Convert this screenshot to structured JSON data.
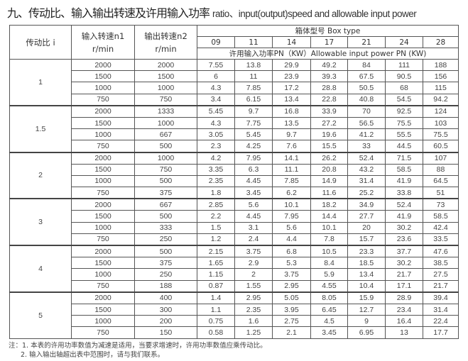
{
  "title": {
    "cn": "九、传动比、输入输出转速及许用输入功率",
    "en": "ratio、input(output)speed and allowable input power"
  },
  "header": {
    "ratio": "传动比 i",
    "input_speed": "输入转速n1",
    "output_speed": "输出转速n2",
    "unit": "r/min",
    "box_type": "箱体型号 Box type",
    "box_sizes": [
      "09",
      "11",
      "14",
      "17",
      "21",
      "24",
      "28"
    ],
    "power_label": "许用输入功率PN（KW）Allowable input power PN (KW)"
  },
  "groups": [
    {
      "ratio": "1",
      "rows": [
        {
          "n1": "2000",
          "n2": "2000",
          "p": [
            "7.55",
            "13.8",
            "29.9",
            "49.2",
            "84",
            "111",
            "188"
          ]
        },
        {
          "n1": "1500",
          "n2": "1500",
          "p": [
            "6",
            "11",
            "23.9",
            "39.3",
            "67.5",
            "90.5",
            "156"
          ]
        },
        {
          "n1": "1000",
          "n2": "1000",
          "p": [
            "4.3",
            "7.85",
            "17.2",
            "28.8",
            "50.5",
            "68",
            "115"
          ]
        },
        {
          "n1": "750",
          "n2": "750",
          "p": [
            "3.4",
            "6.15",
            "13.4",
            "22.8",
            "40.8",
            "54.5",
            "94.2"
          ]
        }
      ]
    },
    {
      "ratio": "1.5",
      "rows": [
        {
          "n1": "2000",
          "n2": "1333",
          "p": [
            "5.45",
            "9.7",
            "16.8",
            "33.9",
            "70",
            "92.5",
            "124"
          ]
        },
        {
          "n1": "1500",
          "n2": "1000",
          "p": [
            "4.3",
            "7.75",
            "13.5",
            "27.2",
            "56.5",
            "75.5",
            "103"
          ]
        },
        {
          "n1": "1000",
          "n2": "667",
          "p": [
            "3.05",
            "5.45",
            "9.7",
            "19.6",
            "41.2",
            "55.5",
            "75.5"
          ]
        },
        {
          "n1": "750",
          "n2": "500",
          "p": [
            "2.3",
            "4.25",
            "7.6",
            "15.5",
            "33",
            "44.5",
            "60.5"
          ]
        }
      ]
    },
    {
      "ratio": "2",
      "rows": [
        {
          "n1": "2000",
          "n2": "1000",
          "p": [
            "4.2",
            "7.95",
            "14.1",
            "26.2",
            "52.4",
            "71.5",
            "107"
          ]
        },
        {
          "n1": "1500",
          "n2": "750",
          "p": [
            "3.35",
            "6.3",
            "11.1",
            "20.8",
            "43.2",
            "58.5",
            "88"
          ]
        },
        {
          "n1": "1000",
          "n2": "500",
          "p": [
            "2.35",
            "4.45",
            "7.85",
            "14.9",
            "31.4",
            "41.9",
            "64.5"
          ]
        },
        {
          "n1": "750",
          "n2": "375",
          "p": [
            "1.8",
            "3.45",
            "6.2",
            "11.6",
            "25.2",
            "33.8",
            "51"
          ]
        }
      ]
    },
    {
      "ratio": "3",
      "rows": [
        {
          "n1": "2000",
          "n2": "667",
          "p": [
            "2.85",
            "5.6",
            "10.1",
            "18.2",
            "34.9",
            "52.4",
            "73"
          ]
        },
        {
          "n1": "1500",
          "n2": "500",
          "p": [
            "2.2",
            "4.45",
            "7.95",
            "14.4",
            "27.7",
            "41.9",
            "58.5"
          ]
        },
        {
          "n1": "1000",
          "n2": "333",
          "p": [
            "1.5",
            "3.1",
            "5.6",
            "10.1",
            "20",
            "30.2",
            "42.4"
          ]
        },
        {
          "n1": "750",
          "n2": "250",
          "p": [
            "1.2",
            "2.4",
            "4.4",
            "7.8",
            "15.7",
            "23.6",
            "33.5"
          ]
        }
      ]
    },
    {
      "ratio": "4",
      "rows": [
        {
          "n1": "2000",
          "n2": "500",
          "p": [
            "2.15",
            "3.75",
            "6.8",
            "10.5",
            "23.3",
            "37.7",
            "47.6"
          ]
        },
        {
          "n1": "1500",
          "n2": "375",
          "p": [
            "1.65",
            "2.9",
            "5.3",
            "8.4",
            "18.5",
            "30.2",
            "38.5"
          ]
        },
        {
          "n1": "1000",
          "n2": "250",
          "p": [
            "1.15",
            "2",
            "3.75",
            "5.9",
            "13.4",
            "21.7",
            "27.5"
          ]
        },
        {
          "n1": "750",
          "n2": "188",
          "p": [
            "0.87",
            "1.55",
            "2.95",
            "4.55",
            "10.4",
            "17.1",
            "21.7"
          ]
        }
      ]
    },
    {
      "ratio": "5",
      "rows": [
        {
          "n1": "2000",
          "n2": "400",
          "p": [
            "1.4",
            "2.95",
            "5.05",
            "8.05",
            "15.9",
            "28.9",
            "39.4"
          ]
        },
        {
          "n1": "1500",
          "n2": "300",
          "p": [
            "1.1",
            "2.35",
            "3.95",
            "6.45",
            "12.7",
            "23.4",
            "31.4"
          ]
        },
        {
          "n1": "1000",
          "n2": "200",
          "p": [
            "0.75",
            "1.6",
            "2.75",
            "4.5",
            "9",
            "16.4",
            "22.4"
          ]
        },
        {
          "n1": "750",
          "n2": "150",
          "p": [
            "0.58",
            "1.25",
            "2.1",
            "3.45",
            "6.95",
            "13",
            "17.7"
          ]
        }
      ]
    }
  ],
  "notes": [
    "注：1. 本表的许用功率数值为减速是适用，当要求增速时，许用功率数值应乘传动比。",
    "2. 输入输出轴超出表中范围时，请与我们联系。"
  ]
}
